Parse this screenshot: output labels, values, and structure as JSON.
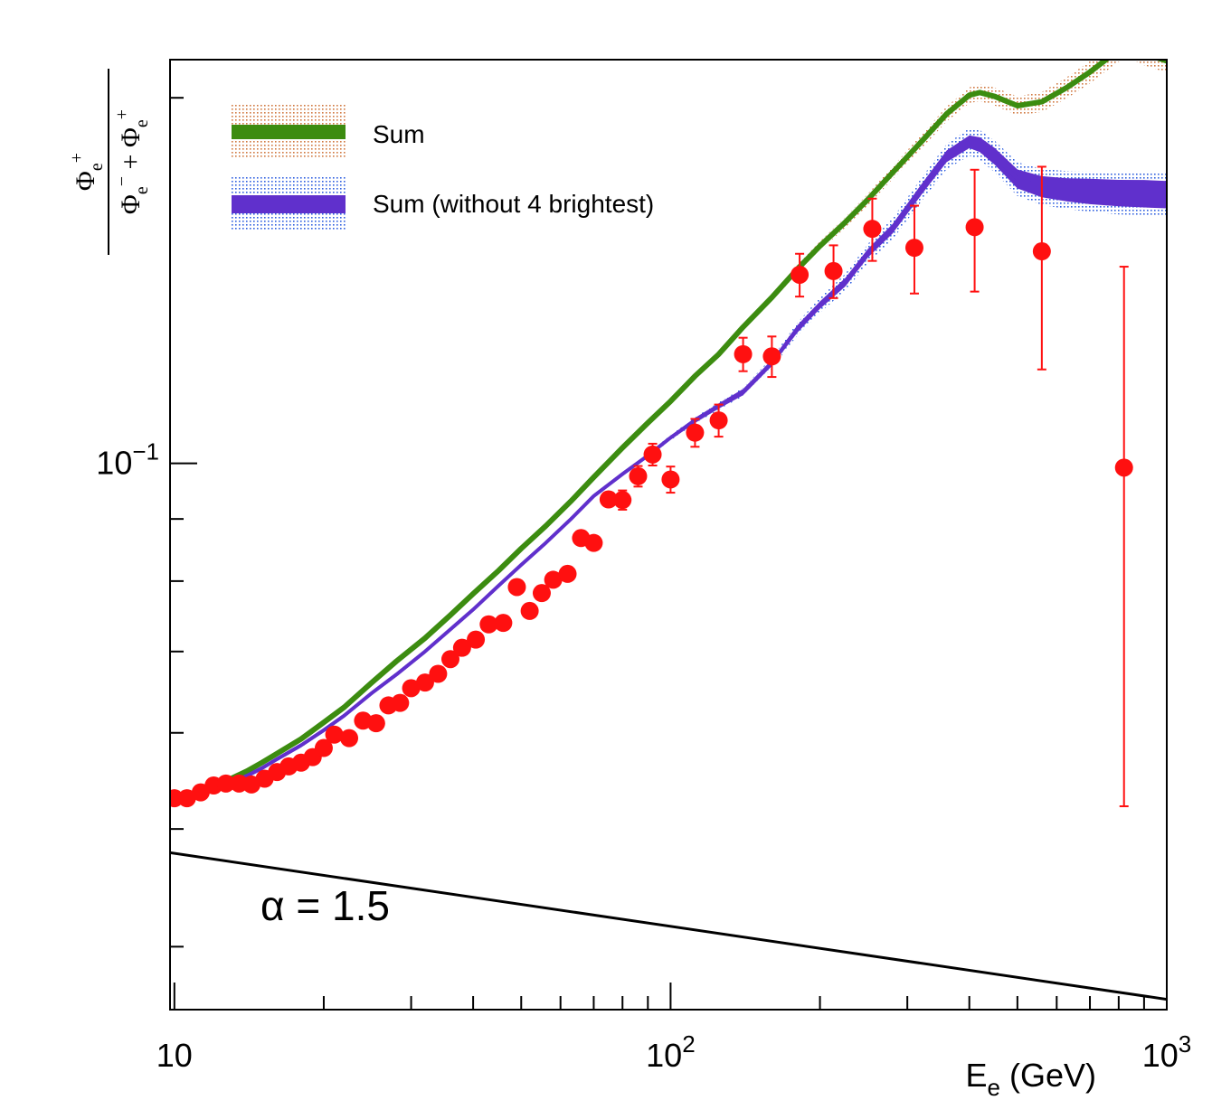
{
  "chart_data": {
    "type": "line",
    "xscale": "log",
    "yscale": "log",
    "xlim": [
      9.8,
      1000
    ],
    "ylim": [
      0.0355,
      0.215
    ],
    "xticks": [
      {
        "value": 10,
        "label": "10"
      },
      {
        "value": 100,
        "label": "10",
        "sup": "2"
      },
      {
        "value": 1000,
        "label": "10",
        "sup": "3"
      }
    ],
    "yticks": [
      {
        "value": 0.1,
        "label": "10",
        "sup": "−1"
      }
    ],
    "xlabel": {
      "main": "E",
      "sub": "e",
      "rest": " (GeV)"
    },
    "ylabel": {
      "numerator": {
        "main": "Φ",
        "sub": "e",
        "sup": "+"
      },
      "denominator": [
        {
          "main": "Φ",
          "sub": "e",
          "sup": "−"
        },
        {
          "op": " + "
        },
        {
          "main": "Φ",
          "sub": "e",
          "sup": "+"
        }
      ]
    },
    "annotation": "α = 1.5",
    "legend": {
      "position": "top-left",
      "entries": [
        {
          "label": "Sum",
          "color": "#3c8c10",
          "band_color": "#d07840"
        },
        {
          "label": "Sum (without 4 brightest)",
          "color": "#6030cc",
          "band_color": "#3060e0"
        }
      ]
    },
    "series": [
      {
        "name": "Sum",
        "color": "#3c8c10",
        "band_color": "#d07840",
        "x": [
          10,
          11,
          12,
          13,
          14,
          15,
          16,
          18,
          20,
          22,
          25,
          28,
          32,
          36,
          40,
          45,
          50,
          56,
          63,
          70,
          80,
          90,
          100,
          112,
          125,
          140,
          160,
          180,
          200,
          225,
          250,
          280,
          320,
          360,
          400,
          420,
          450,
          500,
          560,
          630,
          700,
          800,
          850,
          900,
          1000
        ],
        "y": [
          0.053,
          0.0535,
          0.0542,
          0.055,
          0.0558,
          0.0567,
          0.0576,
          0.0593,
          0.0612,
          0.063,
          0.066,
          0.0687,
          0.0718,
          0.075,
          0.0781,
          0.0816,
          0.0851,
          0.0888,
          0.0931,
          0.0974,
          0.103,
          0.108,
          0.1125,
          0.118,
          0.123,
          0.1295,
          0.137,
          0.1445,
          0.151,
          0.158,
          0.165,
          0.1735,
          0.184,
          0.194,
          0.201,
          0.202,
          0.2005,
          0.197,
          0.1985,
          0.204,
          0.21,
          0.219,
          0.22,
          0.2175,
          0.2145
        ],
        "band_halfwidth_frac": [
          0.004,
          0.004,
          0.004,
          0.004,
          0.004,
          0.004,
          0.004,
          0.004,
          0.004,
          0.004,
          0.004,
          0.004,
          0.004,
          0.004,
          0.004,
          0.004,
          0.004,
          0.004,
          0.004,
          0.004,
          0.004,
          0.004,
          0.005,
          0.005,
          0.006,
          0.006,
          0.007,
          0.008,
          0.009,
          0.01,
          0.011,
          0.012,
          0.013,
          0.014,
          0.015,
          0.016,
          0.017,
          0.018,
          0.019,
          0.02,
          0.021,
          0.022,
          0.022,
          0.022,
          0.022
        ]
      },
      {
        "name": "Sum (without 4 brightest)",
        "color": "#6030cc",
        "band_color": "#3060e0",
        "x": [
          10,
          11,
          12,
          13,
          14,
          15,
          16,
          18,
          20,
          22,
          25,
          28,
          32,
          36,
          40,
          45,
          50,
          56,
          63,
          70,
          80,
          90,
          100,
          112,
          125,
          140,
          160,
          180,
          200,
          225,
          250,
          280,
          320,
          360,
          400,
          420,
          450,
          500,
          560,
          630,
          700,
          800,
          900,
          1000
        ],
        "y": [
          0.053,
          0.0533,
          0.0539,
          0.0546,
          0.0553,
          0.0561,
          0.057,
          0.0586,
          0.0603,
          0.062,
          0.0647,
          0.067,
          0.07,
          0.073,
          0.0758,
          0.0793,
          0.0825,
          0.086,
          0.09,
          0.094,
          0.098,
          0.1015,
          0.105,
          0.1085,
          0.1115,
          0.1145,
          0.121,
          0.129,
          0.135,
          0.141,
          0.149,
          0.156,
          0.168,
          0.179,
          0.184,
          0.183,
          0.179,
          0.1715,
          0.169,
          0.168,
          0.1675,
          0.167,
          0.1668,
          0.1665
        ],
        "band_halfwidth_frac": [
          0.004,
          0.004,
          0.004,
          0.004,
          0.004,
          0.004,
          0.004,
          0.004,
          0.004,
          0.004,
          0.004,
          0.004,
          0.004,
          0.004,
          0.004,
          0.004,
          0.004,
          0.004,
          0.004,
          0.004,
          0.004,
          0.004,
          0.005,
          0.006,
          0.007,
          0.008,
          0.01,
          0.012,
          0.014,
          0.016,
          0.018,
          0.02,
          0.022,
          0.024,
          0.026,
          0.028,
          0.03,
          0.032,
          0.034,
          0.036,
          0.038,
          0.04,
          0.04,
          0.04
        ],
        "core_halfwidth_frac": [
          0.004,
          0.004,
          0.004,
          0.004,
          0.004,
          0.004,
          0.004,
          0.004,
          0.004,
          0.004,
          0.004,
          0.004,
          0.004,
          0.004,
          0.004,
          0.004,
          0.004,
          0.004,
          0.004,
          0.004,
          0.004,
          0.004,
          0.004,
          0.005,
          0.005,
          0.006,
          0.006,
          0.007,
          0.007,
          0.008,
          0.008,
          0.009,
          0.01,
          0.011,
          0.012,
          0.014,
          0.016,
          0.018,
          0.02,
          0.022,
          0.024,
          0.025,
          0.026,
          0.026
        ]
      },
      {
        "name": "black line",
        "color": "#000000",
        "x": [
          9.8,
          1000
        ],
        "y": [
          0.0478,
          0.0362
        ]
      }
    ],
    "data_points": {
      "color": "#ff1010",
      "x": [
        10,
        10.6,
        11.3,
        12,
        12.7,
        13.5,
        14.3,
        15.2,
        16.1,
        17,
        18,
        19,
        20,
        21,
        22.5,
        24,
        25.5,
        27,
        28.5,
        30,
        32,
        34,
        36,
        38,
        40.5,
        43,
        46,
        49,
        52,
        55,
        58,
        62,
        66,
        70,
        75,
        80,
        86,
        92,
        100,
        112,
        125,
        140,
        160,
        182,
        213,
        255,
        310,
        410,
        560,
        820
      ],
      "y": [
        0.053,
        0.053,
        0.0536,
        0.0543,
        0.0545,
        0.0545,
        0.0544,
        0.055,
        0.0557,
        0.0563,
        0.0567,
        0.0573,
        0.0583,
        0.0598,
        0.0594,
        0.0614,
        0.0611,
        0.0632,
        0.0635,
        0.0653,
        0.066,
        0.0671,
        0.069,
        0.0705,
        0.0716,
        0.0737,
        0.0739,
        0.0791,
        0.0756,
        0.0782,
        0.0802,
        0.0811,
        0.0868,
        0.086,
        0.0934,
        0.0933,
        0.0976,
        0.1017,
        0.097,
        0.106,
        0.1085,
        0.123,
        0.1225,
        0.143,
        0.144,
        0.156,
        0.1505,
        0.1565,
        0.1495,
        0.0992
      ],
      "yerr_low": [
        0.0004,
        0.0004,
        0.0004,
        0.0004,
        0.0004,
        0.0004,
        0.0004,
        0.0004,
        0.0004,
        0.0004,
        0.0004,
        0.0004,
        0.0005,
        0.0005,
        0.0005,
        0.0005,
        0.0005,
        0.0006,
        0.0006,
        0.0006,
        0.0006,
        0.0007,
        0.0007,
        0.0007,
        0.0008,
        0.0008,
        0.0008,
        0.0009,
        0.0009,
        0.001,
        0.001,
        0.0012,
        0.0013,
        0.0014,
        0.0015,
        0.0017,
        0.0019,
        0.0021,
        0.0024,
        0.0028,
        0.0033,
        0.0039,
        0.0047,
        0.0058,
        0.0072,
        0.0092,
        0.0125,
        0.018,
        0.03,
        0.047
      ],
      "yerr_high": [
        0.0004,
        0.0004,
        0.0004,
        0.0004,
        0.0004,
        0.0004,
        0.0004,
        0.0004,
        0.0004,
        0.0004,
        0.0004,
        0.0004,
        0.0005,
        0.0005,
        0.0005,
        0.0005,
        0.0005,
        0.0006,
        0.0006,
        0.0006,
        0.0006,
        0.0007,
        0.0007,
        0.0007,
        0.0008,
        0.0008,
        0.0008,
        0.0009,
        0.0009,
        0.001,
        0.001,
        0.0012,
        0.0013,
        0.0014,
        0.0015,
        0.0017,
        0.0019,
        0.0021,
        0.0024,
        0.0028,
        0.0033,
        0.0039,
        0.0047,
        0.0058,
        0.0072,
        0.0092,
        0.0125,
        0.018,
        0.026,
        0.046
      ]
    }
  }
}
